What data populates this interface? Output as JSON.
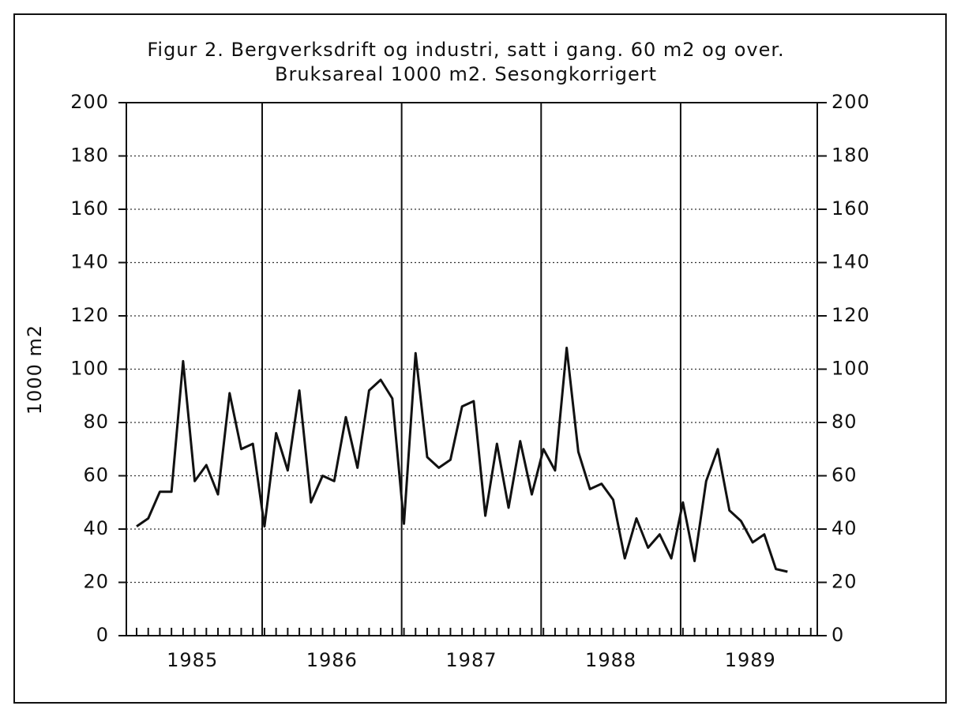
{
  "chart_data": {
    "type": "line",
    "title": "Figur 2. Bergverksdrift og industri, satt i gang. 60 m2 og over.",
    "subtitle": "Bruksareal 1000 m2. Sesongkorrigert",
    "y_label": "1000 m2",
    "x_labels": [
      "1985",
      "1986",
      "1987",
      "1988",
      "1989"
    ],
    "values": [
      41,
      44,
      54,
      54,
      103,
      58,
      64,
      53,
      91,
      70,
      72,
      41,
      76,
      62,
      92,
      50,
      60,
      58,
      82,
      63,
      92,
      96,
      89,
      42,
      106,
      67,
      63,
      66,
      86,
      88,
      45,
      72,
      48,
      73,
      53,
      70,
      62,
      108,
      69,
      55,
      57,
      51,
      29,
      44,
      33,
      38,
      29,
      50,
      28,
      58,
      70,
      47,
      43,
      35,
      38,
      25,
      24
    ],
    "color": "#111111",
    "ylim": [
      0,
      200
    ],
    "yticks": [
      0,
      20,
      40,
      60,
      80,
      100,
      120,
      140,
      160,
      180,
      200
    ],
    "grid": true
  }
}
